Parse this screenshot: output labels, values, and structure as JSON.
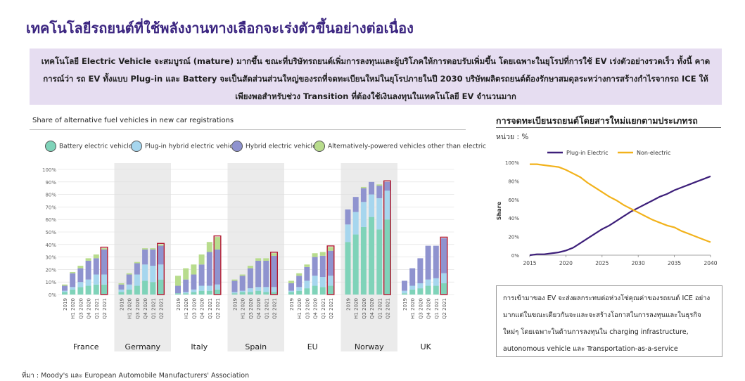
{
  "page_title": "เทคโนโลยีรถยนต์ที่ใช้พลังงานทางเลือกจะเร่งตัวขึ้นอย่างต่อเนื่อง",
  "summary_text": "เทคโนโลยี Electric Vehicle จะสมบูรณ์ (mature) มากขึ้น ขณะที่บริษัทรถยนต์เพิ่มการลงทุนและผู้บริโภคให้การตอบรับเพิ่มขึ้น โดยเฉพาะในยุโรปที่การใช้ EV เร่งตัวอย่างรวดเร็ว ทั้งนี้ คาดการณ์ว่า รถ EV ทั้งแบบ Plug-in และ Battery จะเป็นสัดส่วนส่วนใหญ่ของรถที่จดทะเบียนใหม่ในยุโรปภายในปี 2030 บริษัทผลิตรถยนต์ต้องรักษาสมดุลระหว่างการสร้างกำไรจากรถ ICE ให้เพียงพอสำหรับช่วง Transition ที่ต้องใช้เงินลงทุนในเทคโนโลยี EV จำนวนมาก",
  "right_title": "การจดทะเบียนรถยนต์โดยสารใหม่แยกตามประเภทรถ",
  "unit_label": "หน่วย : %",
  "note_text": "การเข้ามาของ EV จะส่งผลกระทบต่อห่วงโซ่คุณค่าของรถยนต์ ICE อย่างมากแต่ในขณะเดียวกันจะและจะสร้างโอกาสในการลงทุนและในธุรกิจใหม่ๆ โดยเฉพาะในด้านการลงทุนใน charging infrastructure, autonomous vehicle และ Transportation-as-a-service",
  "source": "ที่มา : Moody's และ European Automobile Manufacturers' Association",
  "colors": {
    "bev": "#7fd3b9",
    "phev": "#a6d6ee",
    "hev": "#8f93cf",
    "alt": "#b8dc8d",
    "highlight": "#b0182f",
    "shade": "#ebebeb",
    "plugin": "#3d1f7a",
    "nonelec": "#f2b21b",
    "title": "#3b2580"
  },
  "chart_data": [
    {
      "type": "bar",
      "stacked": true,
      "title": "Share of alternative fuel vehicles in new car registrations",
      "legend": [
        {
          "name": "Battery electric vehicles",
          "icon": "battery-car-icon",
          "color": "#7fd3b9"
        },
        {
          "name": "Plug-in hybrid electric vehicles",
          "icon": "plugin-car-icon",
          "color": "#a6d6ee"
        },
        {
          "name": "Hybrid electric vehicles",
          "icon": "hybrid-car-icon",
          "color": "#8f93cf"
        },
        {
          "name": "Alternatively-powered vehicles other than electric",
          "icon": "gas-car-icon",
          "color": "#b8dc8d"
        }
      ],
      "y_ticks": [
        "0%",
        "10%",
        "20%",
        "30%",
        "40%",
        "50%",
        "60%",
        "70%",
        "80%",
        "90%",
        "100%"
      ],
      "ylim": [
        0,
        100
      ],
      "groups": [
        {
          "name": "France",
          "shaded": false,
          "categories": [
            "2019",
            "H1 2020",
            "Q3 2020",
            "Q4 2020",
            "Q1 2021",
            "Q2 2021"
          ],
          "bev": [
            2,
            4,
            6,
            7,
            8,
            8
          ],
          "phev": [
            1,
            2,
            4,
            5,
            8,
            8
          ],
          "hev": [
            4,
            11,
            11,
            15,
            13,
            20
          ],
          "alt": [
            1,
            1,
            2,
            2,
            3,
            1
          ],
          "highlight": [
            5
          ]
        },
        {
          "name": "Germany",
          "shaded": true,
          "categories": [
            "2019",
            "H1 2020",
            "Q3 2020",
            "Q4 2020",
            "Q1 2021",
            "Q2 2021"
          ],
          "bev": [
            2,
            4,
            7,
            11,
            10,
            12
          ],
          "phev": [
            2,
            4,
            9,
            13,
            13,
            12
          ],
          "hev": [
            4,
            8,
            9,
            12,
            13,
            15
          ],
          "alt": [
            1,
            1,
            1,
            1,
            1,
            1
          ],
          "highlight": [
            5
          ]
        },
        {
          "name": "Italy",
          "shaded": false,
          "categories": [
            "2019",
            "H1 2020",
            "Q3 2020",
            "Q4 2020",
            "Q1 2021",
            "Q2 2021"
          ],
          "bev": [
            1,
            1,
            2,
            3,
            3,
            4
          ],
          "phev": [
            0,
            1,
            2,
            4,
            4,
            4
          ],
          "hev": [
            6,
            10,
            12,
            17,
            27,
            28
          ],
          "alt": [
            8,
            9,
            8,
            8,
            8,
            10
          ],
          "highlight": [
            5
          ]
        },
        {
          "name": "Spain",
          "shaded": true,
          "categories": [
            "2019",
            "H1 2020",
            "Q3 2020",
            "Q4 2020",
            "Q1 2021",
            "Q2 2021"
          ],
          "bev": [
            1,
            2,
            2,
            3,
            2,
            2
          ],
          "phev": [
            1,
            1,
            3,
            3,
            4,
            4
          ],
          "hev": [
            9,
            12,
            16,
            21,
            21,
            25
          ],
          "alt": [
            1,
            1,
            2,
            2,
            2,
            2
          ],
          "highlight": [
            5
          ]
        },
        {
          "name": "EU",
          "shaded": false,
          "categories": [
            "2019",
            "H1 2020",
            "Q3 2020",
            "Q4 2020",
            "Q1 2021",
            "Q2 2021"
          ],
          "bev": [
            2,
            3,
            5,
            7,
            6,
            7
          ],
          "phev": [
            1,
            3,
            6,
            8,
            8,
            8
          ],
          "hev": [
            6,
            9,
            11,
            15,
            17,
            20
          ],
          "alt": [
            2,
            2,
            2,
            3,
            3,
            3
          ],
          "highlight": [
            5
          ]
        },
        {
          "name": "Norway",
          "shaded": true,
          "categories": [
            "2019",
            "H1 2020",
            "Q3 2020",
            "Q4 2020",
            "Q1 2021",
            "Q2 2021"
          ],
          "bev": [
            42,
            48,
            54,
            62,
            52,
            60
          ],
          "phev": [
            14,
            18,
            20,
            18,
            25,
            23
          ],
          "hev": [
            12,
            12,
            11,
            10,
            10,
            7
          ],
          "alt": [
            0,
            0,
            1,
            0,
            1,
            0
          ],
          "highlight": [
            5
          ]
        },
        {
          "name": "UK",
          "shaded": false,
          "categories": [
            "2019",
            "H1 2020",
            "Q3 2020",
            "Q4 2020",
            "Q1 2021",
            "Q2 2021"
          ],
          "bev": [
            1,
            4,
            5,
            7,
            7,
            9
          ],
          "phev": [
            2,
            3,
            4,
            5,
            6,
            8
          ],
          "hev": [
            8,
            14,
            20,
            27,
            26,
            28
          ],
          "alt": [
            0,
            0,
            0,
            0,
            0,
            0
          ],
          "highlight": [
            5
          ]
        }
      ]
    },
    {
      "type": "line",
      "title": "การจดทะเบียนรถยนต์โดยสารใหม่แยกตามประเภทรถ",
      "ylabel": "Share",
      "x_ticks": [
        "2015",
        "2020",
        "2025",
        "2030",
        "2035",
        "2040"
      ],
      "y_ticks": [
        "0%",
        "20%",
        "40%",
        "60%",
        "80%",
        "100%"
      ],
      "xlim": [
        2015,
        2040
      ],
      "ylim": [
        0,
        100
      ],
      "series": [
        {
          "name": "Plug-in Electric",
          "color": "#3d1f7a",
          "x": [
            2015,
            2016,
            2017,
            2018,
            2019,
            2020,
            2021,
            2022,
            2023,
            2024,
            2025,
            2026,
            2027,
            2028,
            2029,
            2030,
            2031,
            2032,
            2033,
            2034,
            2035,
            2036,
            2037,
            2038,
            2039,
            2040
          ],
          "y": [
            0,
            1,
            1,
            2,
            3,
            5,
            8,
            13,
            18,
            23,
            28,
            32,
            37,
            42,
            47,
            51,
            55,
            59,
            63,
            66,
            70,
            73,
            76,
            79,
            82,
            85
          ]
        },
        {
          "name": "Non-electric",
          "color": "#f2b21b",
          "x": [
            2015,
            2016,
            2017,
            2018,
            2019,
            2020,
            2021,
            2022,
            2023,
            2024,
            2025,
            2026,
            2027,
            2028,
            2029,
            2030,
            2031,
            2032,
            2033,
            2034,
            2035,
            2036,
            2037,
            2038,
            2039,
            2040
          ],
          "y": [
            98,
            98,
            97,
            96,
            95,
            92,
            88,
            84,
            78,
            73,
            68,
            63,
            59,
            54,
            50,
            46,
            42,
            38,
            35,
            32,
            30,
            26,
            23,
            20,
            17,
            14
          ]
        }
      ]
    }
  ]
}
